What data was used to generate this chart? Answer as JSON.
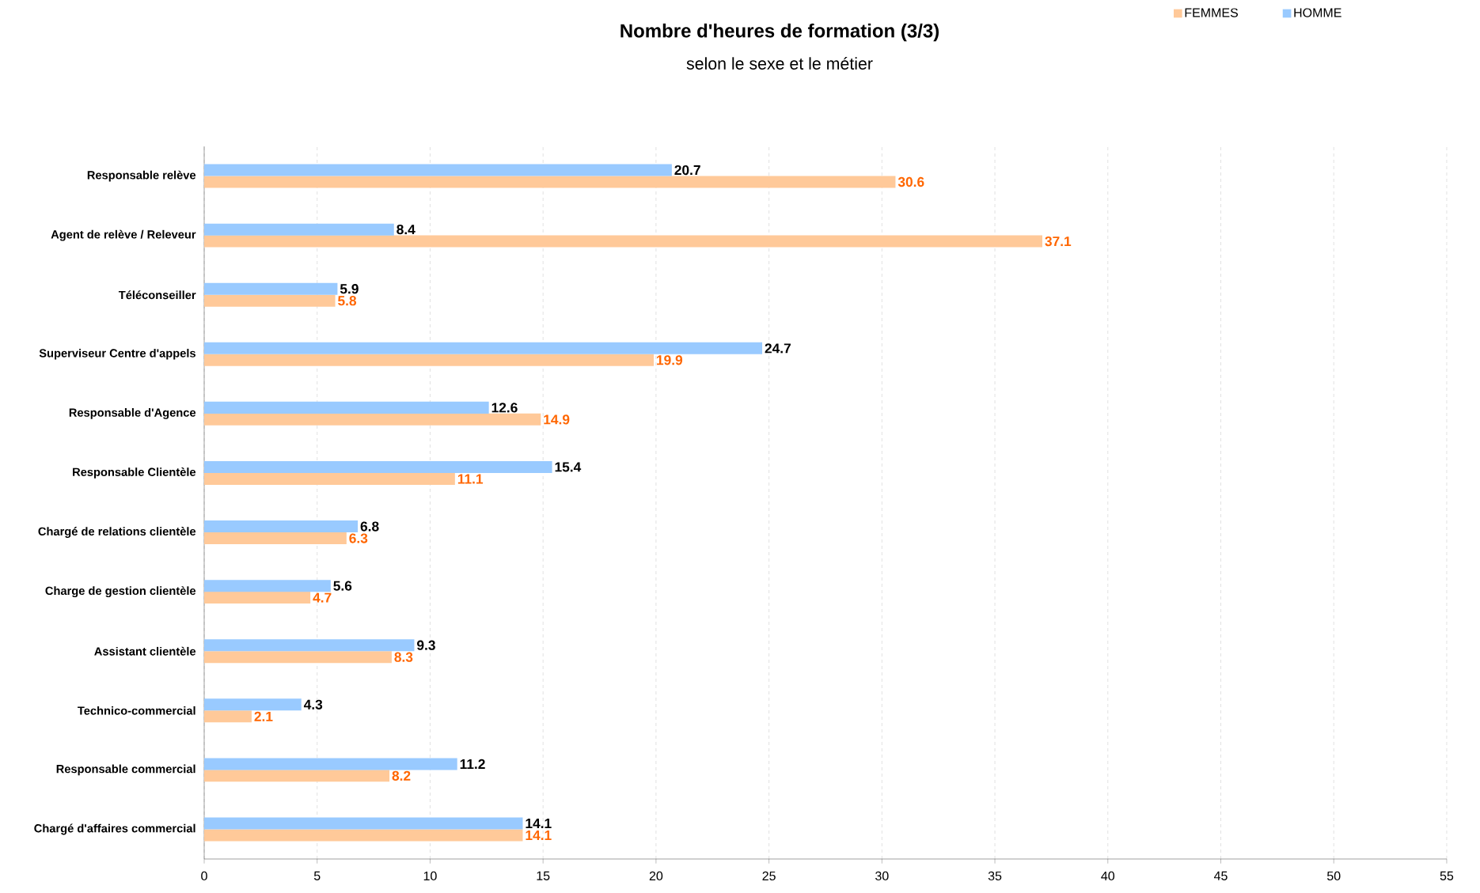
{
  "chart_data": {
    "type": "bar",
    "orientation": "horizontal",
    "title": "Nombre d'heures de formation (3/3)",
    "subtitle": "selon le sexe et le métier",
    "categories": [
      "Responsable relève",
      "Agent de relève / Releveur",
      "Téléconseiller",
      "Superviseur Centre d'appels",
      "Responsable d'Agence",
      "Responsable Clientèle",
      "Chargé de relations clientèle",
      "Charge de gestion clientèle",
      "Assistant clientèle",
      "Technico-commercial",
      "Responsable commercial",
      "Chargé d'affaires commercial"
    ],
    "series": [
      {
        "name": "FEMMES",
        "color": "#ffc999",
        "values": [
          30.6,
          37.1,
          5.8,
          19.9,
          14.9,
          11.1,
          6.3,
          4.7,
          8.3,
          2.1,
          8.2,
          14.1
        ]
      },
      {
        "name": "HOMME",
        "color": "#99caff",
        "values": [
          20.7,
          8.4,
          5.9,
          24.7,
          12.6,
          15.4,
          6.8,
          5.6,
          9.3,
          4.3,
          11.2,
          14.1
        ]
      }
    ],
    "xlim": [
      0,
      55
    ],
    "xticks": [
      0,
      5,
      10,
      15,
      20,
      25,
      30,
      35,
      40,
      45,
      50,
      55
    ],
    "grid": "x",
    "legend": "top right",
    "data_labels": true
  }
}
